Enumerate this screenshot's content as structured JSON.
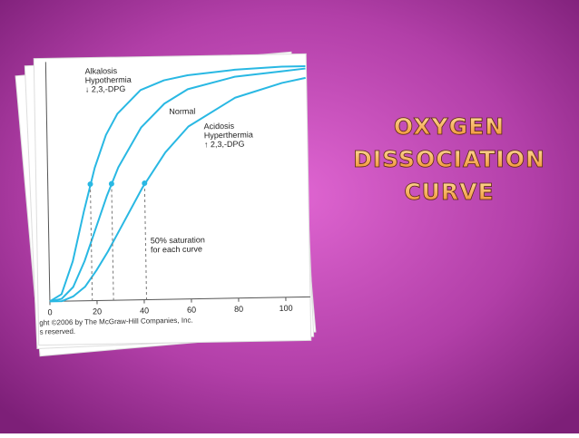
{
  "title": [
    "OXYGEN",
    "DISSOCIATION",
    "CURVE"
  ],
  "chart_data": {
    "type": "line",
    "x": [
      0,
      5,
      10,
      15,
      20,
      25,
      30,
      40,
      50,
      60,
      80,
      100,
      110
    ],
    "series": [
      {
        "name": [
          "Alkalosis",
          "Hypothermia",
          "↓ 2,3,-DPG"
        ],
        "color": "#29b8e3",
        "values": [
          0,
          3,
          17,
          38,
          57,
          71,
          80,
          90,
          94,
          96,
          98,
          99,
          99
        ]
      },
      {
        "name": [
          "Normal"
        ],
        "color": "#29b8e3",
        "values": [
          0,
          1,
          6,
          17,
          31,
          45,
          57,
          74,
          84,
          90,
          95,
          97,
          98
        ]
      },
      {
        "name": [
          "Acidosis",
          "Hyperthermia",
          "↑ 2,3,-DPG"
        ],
        "color": "#29b8e3",
        "values": [
          0,
          0,
          2,
          6,
          13,
          21,
          30,
          48,
          63,
          74,
          86,
          92,
          94
        ]
      }
    ],
    "markers": {
      "x": [
        18,
        27,
        41
      ],
      "values": [
        50,
        50,
        50
      ],
      "color": "#29b8e3"
    },
    "annotation": [
      "50% saturation",
      "for each curve"
    ],
    "xlim": [
      0,
      110
    ],
    "ylim": [
      0,
      100
    ],
    "xticks": [
      0,
      20,
      40,
      60,
      80,
      100
    ],
    "credit": [
      "ght ©2006 by The McGraw-Hill Companies, Inc.",
      "s reserved."
    ]
  }
}
